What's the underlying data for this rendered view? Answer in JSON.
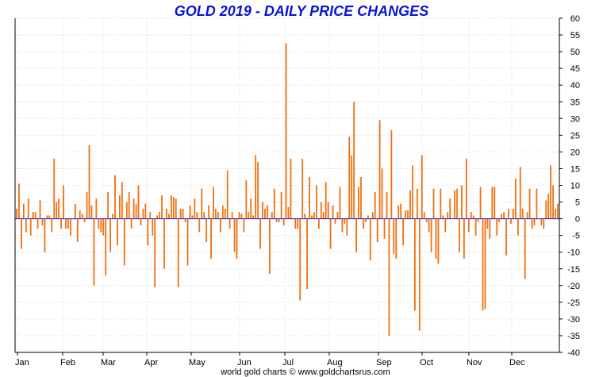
{
  "chart_data": {
    "type": "bar",
    "title": "GOLD 2019 - DAILY PRICE CHANGES",
    "footer": "world gold charts © www.goldchartsrus.com",
    "ylim": [
      -40,
      60
    ],
    "y_ticks": [
      60,
      55,
      50,
      45,
      40,
      35,
      30,
      25,
      20,
      15,
      10,
      5,
      0,
      -5,
      -10,
      -15,
      -20,
      -25,
      -30,
      -35,
      -40
    ],
    "months": [
      "Jan",
      "Feb",
      "Mar",
      "Apr",
      "May",
      "Jun",
      "Jul",
      "Aug",
      "Sep",
      "Oct",
      "Nov",
      "Dec"
    ],
    "grid": true,
    "bar_color": "#f07010",
    "zero_line_color": "#2020c0",
    "title_color": "#0a14d8",
    "series": [
      {
        "values": [
          3,
          10.5,
          -9,
          4.5,
          -4,
          6,
          -5,
          2,
          2,
          -3,
          5.5,
          -2,
          -10,
          1,
          1,
          -4,
          18,
          5,
          6,
          -3,
          10,
          -3,
          -3,
          -5,
          0,
          4.5,
          -7,
          2.5,
          1.5,
          -1,
          8,
          22,
          4,
          -20,
          6,
          -3,
          -4,
          -5,
          -17,
          8,
          -10,
          1.5,
          13,
          -8,
          7,
          11,
          -14,
          5,
          8,
          -3,
          6,
          4.5,
          10,
          -2,
          3,
          4.5,
          -8,
          2,
          -5,
          -20.5,
          1,
          2,
          7,
          -15,
          3,
          1.5,
          7,
          6.5,
          6,
          -20.5,
          3,
          3,
          -1,
          -14,
          4,
          1,
          6,
          2,
          -4,
          9,
          2,
          -7,
          4,
          -12,
          9.5,
          3,
          2,
          -4,
          4,
          3,
          14.5,
          -3,
          2,
          -10,
          -12,
          2,
          1.5,
          -4,
          11.5,
          2,
          6,
          1,
          19,
          17,
          -9,
          5,
          3,
          4,
          -16.5,
          2,
          9,
          -1,
          -1,
          8,
          -2,
          52.5,
          3.5,
          18,
          0,
          -3,
          -3,
          -24.5,
          18,
          1.5,
          -21,
          12.5,
          1,
          2,
          10,
          -3,
          5,
          2,
          11,
          5,
          -9,
          4,
          -1.5,
          2,
          9.5,
          -4,
          -1.5,
          -5,
          24.5,
          19,
          35,
          -10,
          9.5,
          12.5,
          -3,
          -1,
          1,
          -12.5,
          2,
          8,
          -7,
          29.5,
          15,
          -6,
          8,
          -35,
          26.5,
          -10.5,
          -12,
          4,
          4.5,
          -8,
          2.5,
          2.5,
          8.5,
          16,
          -27.5,
          9,
          -33.5,
          19,
          2,
          -1,
          -4,
          -10,
          9,
          -12,
          -13.5,
          9,
          1,
          -4,
          2,
          6,
          0,
          8.5,
          9,
          -10,
          10,
          -12,
          18,
          -4,
          2,
          1,
          -5,
          -1,
          9.5,
          -27.5,
          -27,
          -3,
          -6,
          9.5,
          9.5,
          -5,
          -1,
          1.5,
          2,
          -11,
          3,
          -1.5,
          3,
          12,
          -5,
          15.5,
          3,
          -18,
          2,
          9,
          -3,
          -2,
          9,
          0,
          -2,
          -3,
          5.5,
          7.5,
          16,
          10,
          3,
          4.5
        ]
      }
    ]
  }
}
